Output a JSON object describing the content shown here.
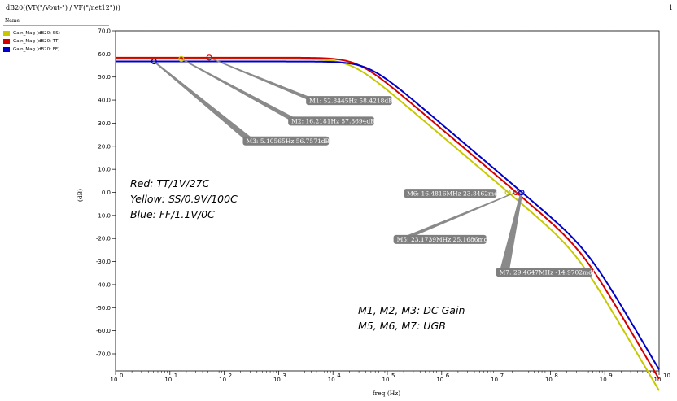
{
  "window": {
    "title": "dB20((VF(\"/Vout-\") / VF(\"/net12\")))",
    "page": "1"
  },
  "legend": {
    "header": "Name",
    "items": [
      {
        "label": "Gain_Mag (dB20; SS)",
        "color": "#c8c800"
      },
      {
        "label": "Gain_Mag (dB20; TT)",
        "color": "#d40000"
      },
      {
        "label": "Gain_Mag (dB20; FF)",
        "color": "#0000c8"
      }
    ]
  },
  "chart_data": {
    "type": "line",
    "xlabel": "freq (Hz)",
    "ylabel": "(dB)",
    "x_scale": "log",
    "xlim": [
      1,
      10000000000
    ],
    "ylim": [
      -75,
      72
    ],
    "x_ticks": [
      {
        "base": "10",
        "exp": "0"
      },
      {
        "base": "10",
        "exp": "1"
      },
      {
        "base": "10",
        "exp": "2"
      },
      {
        "base": "10",
        "exp": "3"
      },
      {
        "base": "10",
        "exp": "4"
      },
      {
        "base": "10",
        "exp": "5"
      },
      {
        "base": "10",
        "exp": "6"
      },
      {
        "base": "10",
        "exp": "7"
      },
      {
        "base": "10",
        "exp": "8"
      },
      {
        "base": "10",
        "exp": "9"
      },
      {
        "base": "10",
        "exp": "10"
      }
    ],
    "y_ticks": [
      "70.0",
      "60.0",
      "50.0",
      "40.0",
      "30.0",
      "20.0",
      "10.0",
      "0.0",
      "-10.0",
      "-20.0",
      "-30.0",
      "-40.0",
      "-50.0",
      "-60.0",
      "-70.0"
    ],
    "grid": true,
    "series": [
      {
        "name": "Gain_Mag (dB20; SS)",
        "color": "#c8c800",
        "dc_gain": 57.8694,
        "pole_hz": 16800,
        "unity_hz": 16500000,
        "hf_pole_hz": 300000000
      },
      {
        "name": "Gain_Mag (dB20; TT)",
        "color": "#d40000",
        "dc_gain": 58.4218,
        "pole_hz": 22000,
        "unity_hz": 23200000,
        "hf_pole_hz": 380000000
      },
      {
        "name": "Gain_Mag (dB20; FF)",
        "color": "#0000c8",
        "dc_gain": 56.7571,
        "pole_hz": 33000,
        "unity_hz": 29500000,
        "hf_pole_hz": 480000000
      }
    ],
    "markers": [
      {
        "id": "M1",
        "label": "M1: 52.8445Hz 58.4218dB",
        "x": 52.8445,
        "y": 58.4218,
        "color": "#d40000",
        "box_x": 3200,
        "box_y": 39.8,
        "anchor": "left"
      },
      {
        "id": "M2",
        "label": "M2: 16.2181Hz 57.8694dB",
        "x": 16.2181,
        "y": 57.8694,
        "color": "#c8c800",
        "box_x": 1500,
        "box_y": 30.9,
        "anchor": "left"
      },
      {
        "id": "M3",
        "label": "M3: 5.10565Hz 56.7571dB",
        "x": 5.10565,
        "y": 56.7571,
        "color": "#0000c8",
        "box_x": 220,
        "box_y": 22.3,
        "anchor": "left"
      },
      {
        "id": "M6",
        "label": "M6: 16.4816MHz 23.8462mdB",
        "x": 16481600,
        "y": 0.0238,
        "color": "#c8c800",
        "box_x": 200000,
        "box_y": -0.4,
        "anchor": "left"
      },
      {
        "id": "M5",
        "label": "M5: 23.1739MHz 25.1686mdB",
        "x": 23173900,
        "y": 0.0252,
        "color": "#d40000",
        "box_x": 130000,
        "box_y": -20.4,
        "anchor": "left"
      },
      {
        "id": "M7",
        "label": "M7: 29.4647MHz -14.9702mdB",
        "x": 29464700,
        "y": -0.015,
        "color": "#0000c8",
        "box_x": 10000000,
        "box_y": -34.6,
        "anchor": "left"
      }
    ],
    "annotations": [
      {
        "id": "corner-note",
        "lines": [
          "Red: TT/1V/27C",
          "Yellow: SS/0.9V/100C",
          "Blue: FF/1.1V/0C"
        ],
        "x": 4,
        "y": 4
      },
      {
        "id": "marker-note",
        "lines": [
          "M1, M2, M3: DC Gain",
          "M5, M6, M7: UGB"
        ],
        "x": 150000,
        "y": -50
      }
    ]
  }
}
